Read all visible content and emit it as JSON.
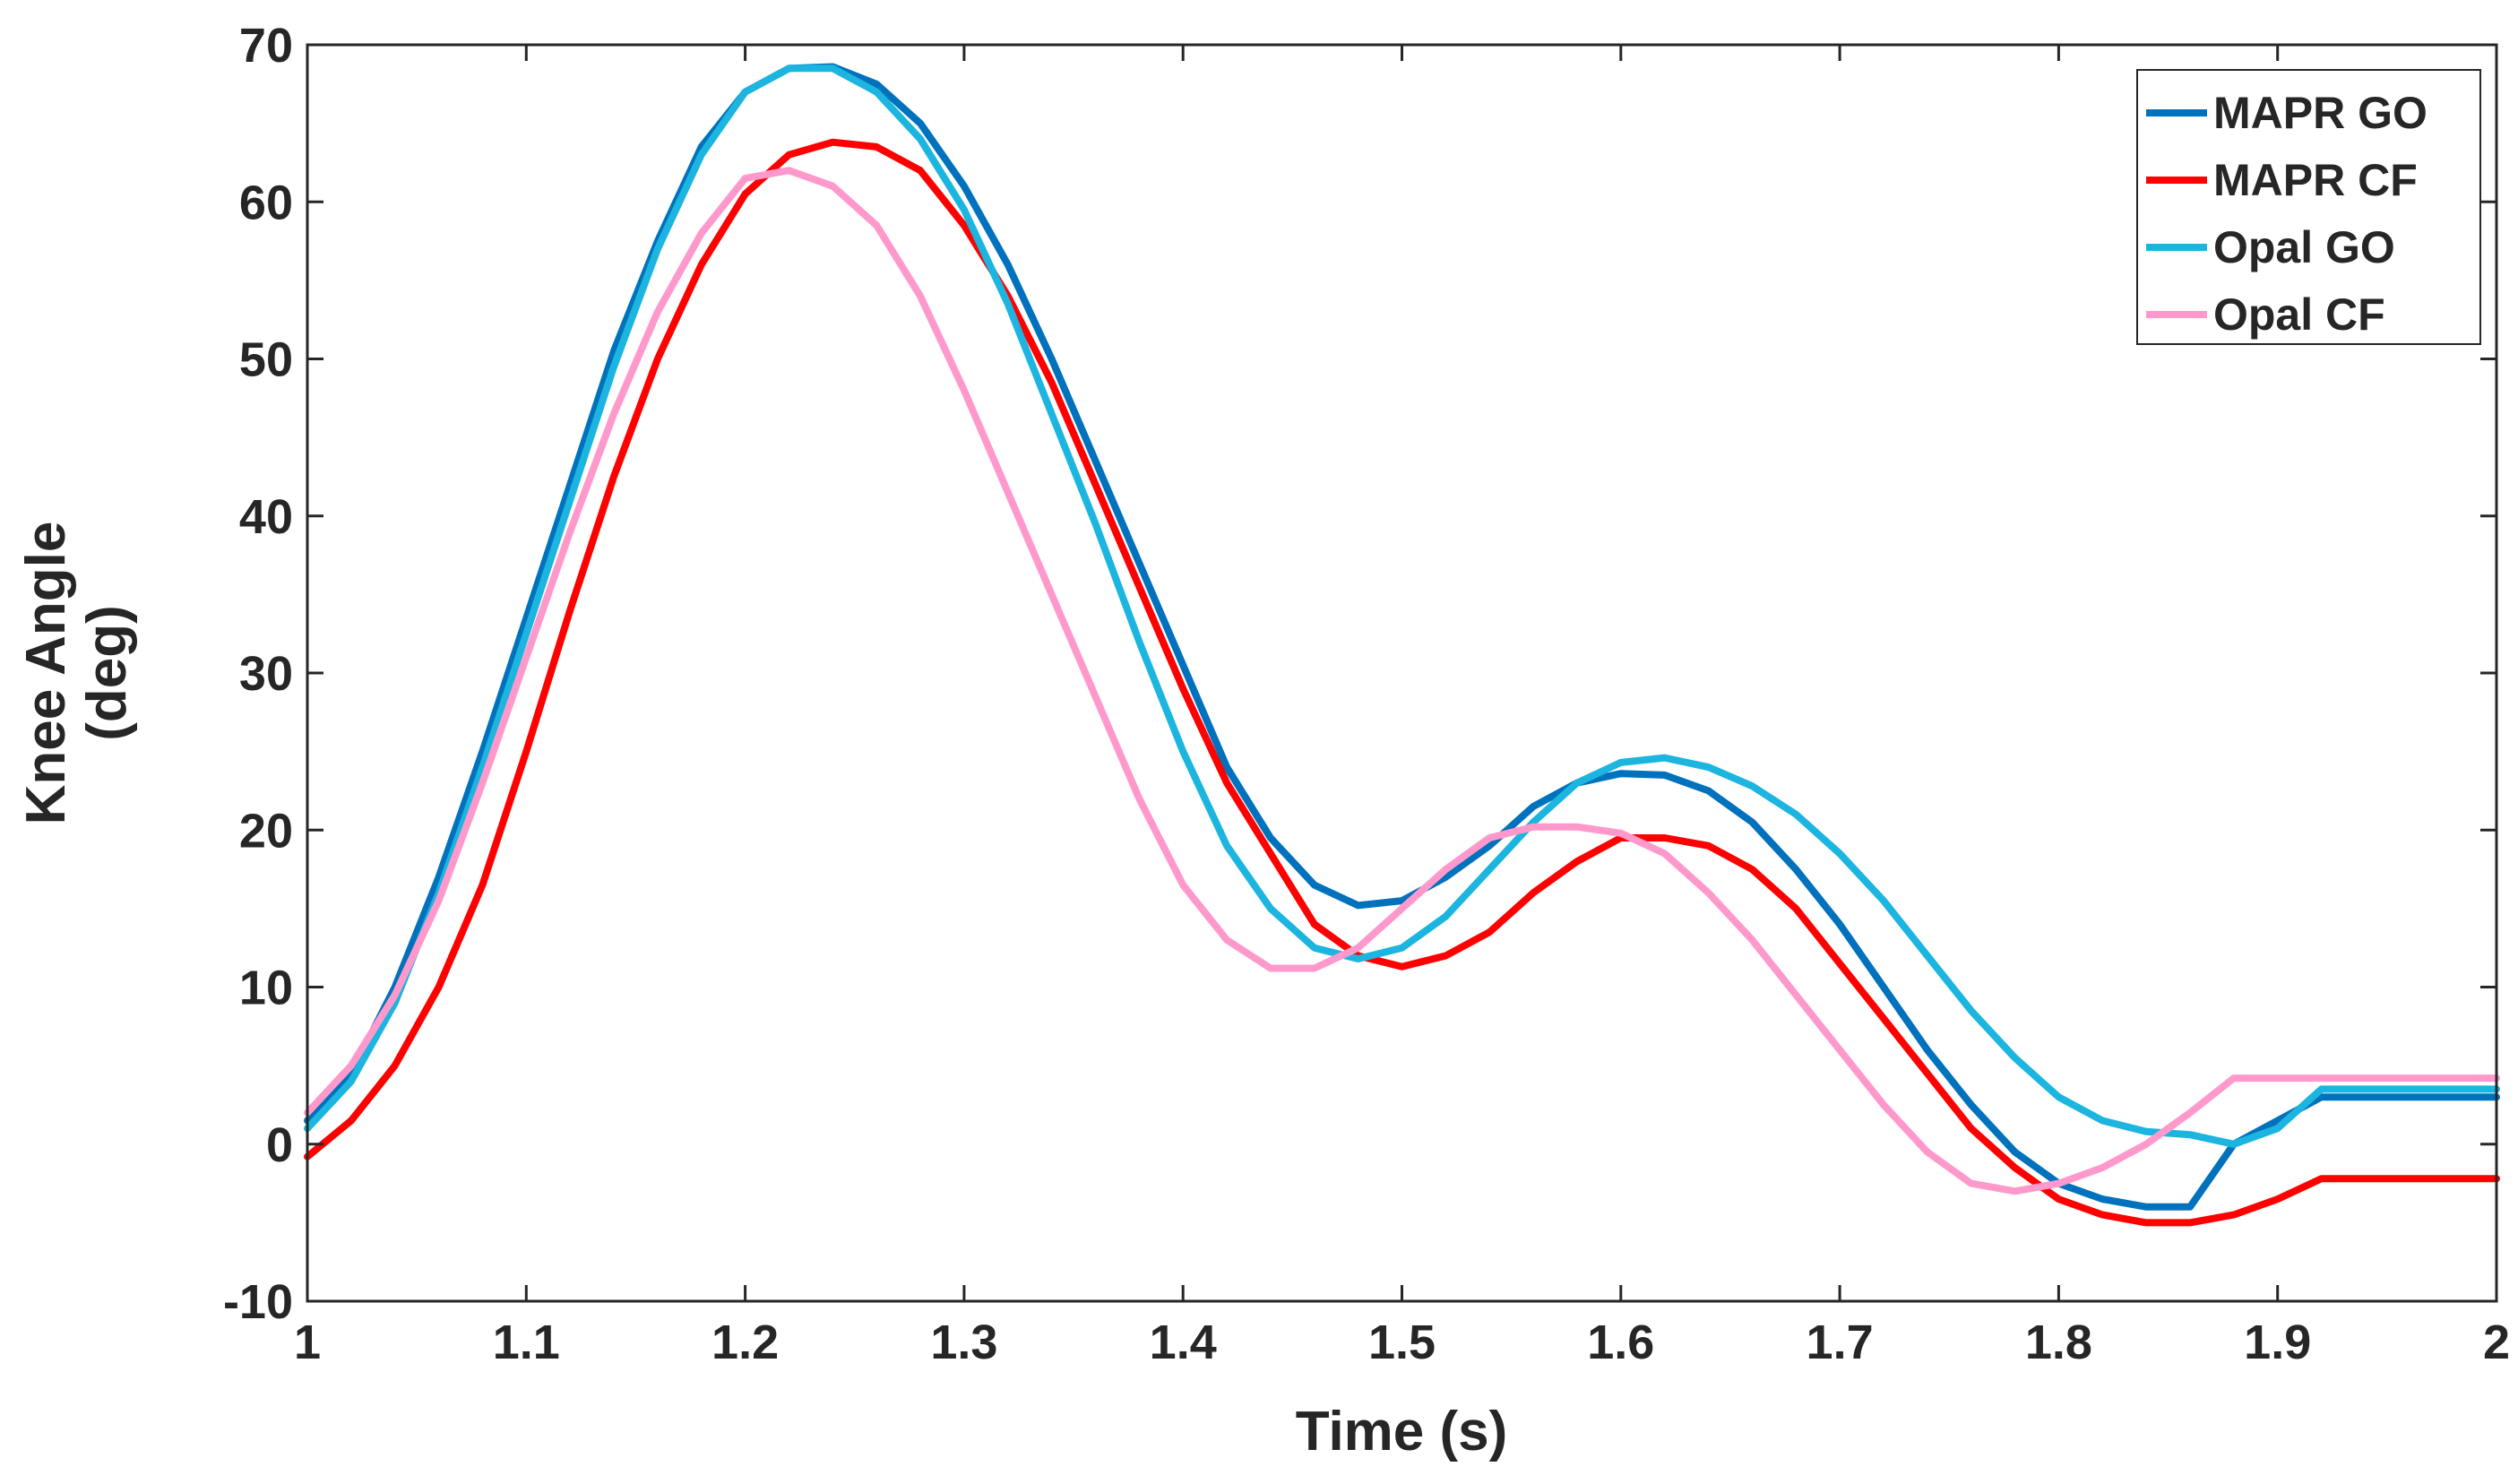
{
  "chart_data": {
    "type": "line",
    "title": "",
    "xlabel": "Time (s)",
    "ylabel_line1": "Knee Angle",
    "ylabel_line2": "(deg)",
    "xlim": [
      1,
      2
    ],
    "ylim": [
      -10,
      70
    ],
    "xticks": [
      1,
      1.1,
      1.2,
      1.3,
      1.4,
      1.5,
      1.6,
      1.7,
      1.8,
      1.9,
      2
    ],
    "xtick_labels": [
      "1",
      "1.1",
      "1.2",
      "1.3",
      "1.4",
      "1.5",
      "1.6",
      "1.7",
      "1.8",
      "1.9",
      "2"
    ],
    "yticks": [
      -10,
      0,
      10,
      20,
      30,
      40,
      50,
      60,
      70
    ],
    "ytick_labels": [
      "-10",
      "0",
      "10",
      "20",
      "30",
      "40",
      "50",
      "60",
      "70"
    ],
    "grid": false,
    "legend_position": "top-right",
    "x": [
      1.0,
      1.02,
      1.04,
      1.06,
      1.08,
      1.1,
      1.12,
      1.14,
      1.16,
      1.18,
      1.2,
      1.22,
      1.24,
      1.26,
      1.28,
      1.3,
      1.32,
      1.34,
      1.36,
      1.38,
      1.4,
      1.42,
      1.44,
      1.46,
      1.48,
      1.5,
      1.52,
      1.54,
      1.56,
      1.58,
      1.6,
      1.62,
      1.64,
      1.66,
      1.68,
      1.7,
      1.72,
      1.74,
      1.76,
      1.78,
      1.8,
      1.82,
      1.84,
      1.86,
      1.88,
      1.9,
      1.92,
      1.94,
      1.96,
      1.98,
      2.0
    ],
    "series": [
      {
        "name": "MAPR GO",
        "color": "#0072BD",
        "values": [
          1.5,
          4.5,
          10,
          17,
          25,
          33.5,
          42,
          50.5,
          57.5,
          63.5,
          67,
          68.5,
          68.6,
          67.5,
          65,
          61,
          56,
          50,
          43.5,
          37,
          30.5,
          24,
          19.5,
          16.5,
          15.2,
          15.5,
          17,
          19,
          21.5,
          23,
          23.6,
          23.5,
          22.5,
          20.5,
          17.5,
          14,
          10,
          6,
          2.5,
          -0.5,
          -2.5,
          -3.5,
          -4,
          -4,
          0,
          1.5,
          3,
          3,
          3,
          3,
          3
        ]
      },
      {
        "name": "MAPR CF",
        "color": "#FF0000",
        "values": [
          -0.8,
          1.5,
          5,
          10,
          16.5,
          25,
          34,
          42.5,
          50,
          56,
          60.5,
          63,
          63.8,
          63.5,
          62,
          58.5,
          54,
          48.5,
          42,
          35.5,
          29,
          23,
          18.5,
          14,
          12,
          11.3,
          12,
          13.5,
          16,
          18,
          19.5,
          19.5,
          19,
          17.5,
          15,
          11.5,
          8,
          4.5,
          1,
          -1.5,
          -3.5,
          -4.5,
          -5,
          -5,
          -4.5,
          -3.5,
          -2.2,
          -2.2,
          -2.2,
          -2.2,
          -2.2
        ]
      },
      {
        "name": "Opal GO",
        "color": "#1BB5E0",
        "values": [
          1,
          4,
          9,
          16,
          24,
          32.5,
          41,
          49.5,
          57,
          63,
          67,
          68.5,
          68.5,
          67,
          64,
          59.5,
          53.5,
          46.5,
          39.5,
          32,
          25,
          19,
          15,
          12.5,
          11.8,
          12.5,
          14.5,
          17.5,
          20.5,
          23,
          24.3,
          24.6,
          24,
          22.8,
          21,
          18.5,
          15.5,
          12,
          8.5,
          5.5,
          3,
          1.5,
          0.8,
          0.6,
          0,
          1,
          3.5,
          3.5,
          3.5,
          3.5,
          3.5
        ]
      },
      {
        "name": "Opal CF",
        "color": "#FF99CC",
        "values": [
          2,
          5,
          9.5,
          15.5,
          23,
          31,
          39,
          46.5,
          53,
          58,
          61.5,
          62,
          61,
          58.5,
          54,
          48,
          41.5,
          35,
          28.5,
          22,
          16.5,
          13,
          11.2,
          11.2,
          12.5,
          15,
          17.5,
          19.5,
          20.2,
          20.2,
          19.8,
          18.5,
          16,
          13,
          9.5,
          6,
          2.5,
          -0.5,
          -2.5,
          -3,
          -2.5,
          -1.5,
          0,
          2,
          4.2,
          4.2,
          4.2,
          4.2,
          4.2,
          4.2,
          4.2
        ]
      }
    ]
  }
}
